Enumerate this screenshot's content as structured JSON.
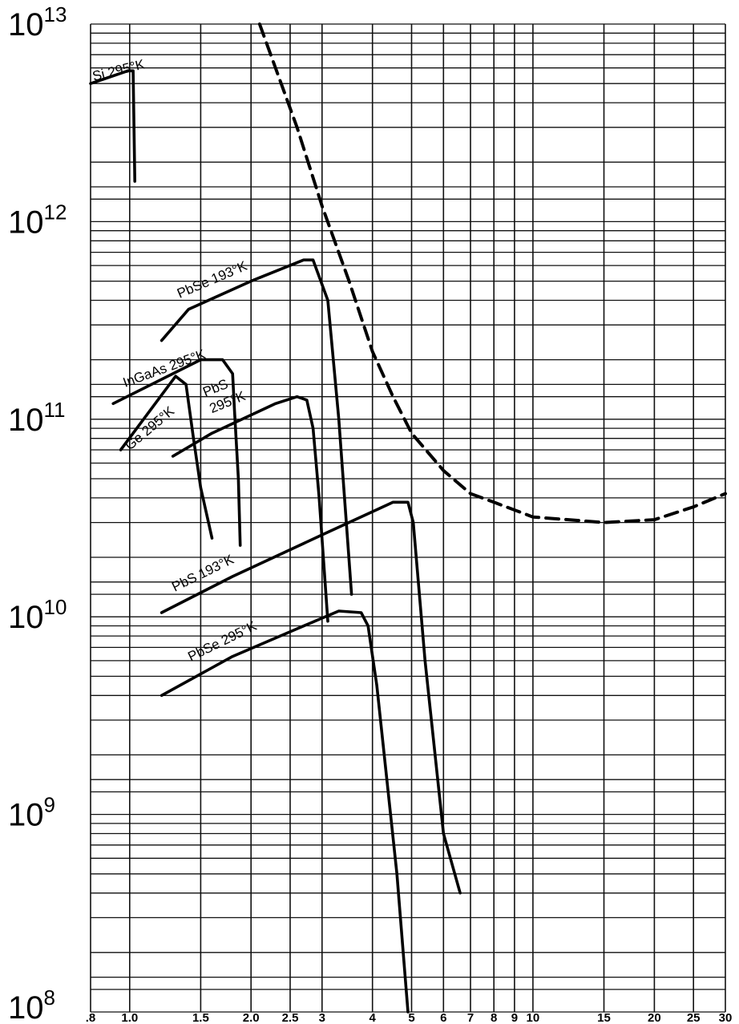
{
  "chart_data": {
    "type": "line",
    "title": "",
    "xlabel": "",
    "ylabel": "",
    "x_scale": "log",
    "y_scale": "log",
    "xlim": [
      0.8,
      30
    ],
    "ylim": [
      100000000.0,
      10000000000000.0
    ],
    "grid": true,
    "y_ticks": [
      {
        "base": "10",
        "exp": "8",
        "value": 100000000.0
      },
      {
        "base": "10",
        "exp": "9",
        "value": 1000000000.0
      },
      {
        "base": "10",
        "exp": "10",
        "value": 10000000000.0
      },
      {
        "base": "10",
        "exp": "11",
        "value": 100000000000.0
      },
      {
        "base": "10",
        "exp": "12",
        "value": 1000000000000.0
      },
      {
        "base": "10",
        "exp": "13",
        "value": 10000000000000.0
      }
    ],
    "x_ticks": [
      {
        "label": ".8",
        "value": 0.8
      },
      {
        "label": "1.0",
        "value": 1.0
      },
      {
        "label": "1.5",
        "value": 1.5
      },
      {
        "label": "2.0",
        "value": 2.0
      },
      {
        "label": "2.5",
        "value": 2.5
      },
      {
        "label": "3",
        "value": 3
      },
      {
        "label": "4",
        "value": 4
      },
      {
        "label": "5",
        "value": 5
      },
      {
        "label": "6",
        "value": 6
      },
      {
        "label": "7",
        "value": 7
      },
      {
        "label": "8",
        "value": 8
      },
      {
        "label": "9",
        "value": 9
      },
      {
        "label": "10",
        "value": 10
      },
      {
        "label": "15",
        "value": 15
      },
      {
        "label": "20",
        "value": 20
      },
      {
        "label": "25",
        "value": 25
      },
      {
        "label": "30",
        "value": 30
      }
    ],
    "grid_x": [
      0.8,
      1.0,
      1.5,
      2.0,
      2.5,
      3,
      4,
      5,
      6,
      7,
      8,
      9,
      10,
      15,
      20,
      25,
      30
    ],
    "grid_y": [
      100000000.0,
      130000000.0,
      150000000.0,
      200000000.0,
      300000000.0,
      400000000.0,
      500000000.0,
      600000000.0,
      700000000.0,
      800000000.0,
      900000000.0,
      1000000000.0,
      1300000000.0,
      1500000000.0,
      2000000000.0,
      3000000000.0,
      4000000000.0,
      5000000000.0,
      6000000000.0,
      7000000000.0,
      8000000000.0,
      9000000000.0,
      10000000000.0,
      13000000000.0,
      15000000000.0,
      20000000000.0,
      30000000000.0,
      40000000000.0,
      50000000000.0,
      60000000000.0,
      70000000000.0,
      80000000000.0,
      90000000000.0,
      100000000000.0,
      130000000000.0,
      150000000000.0,
      200000000000.0,
      300000000000.0,
      400000000000.0,
      500000000000.0,
      600000000000.0,
      700000000000.0,
      800000000000.0,
      900000000000.0,
      1000000000000.0,
      1300000000000.0,
      1500000000000.0,
      2000000000000.0,
      3000000000000.0,
      4000000000000.0,
      5000000000000.0,
      6000000000000.0,
      7000000000000.0,
      8000000000000.0,
      9000000000000.0,
      10000000000000.0
    ],
    "series": [
      {
        "name": "Si 295°K",
        "style": "solid",
        "points": [
          [
            0.8,
            5000000000000.0
          ],
          [
            0.99,
            5800000000000.0
          ],
          [
            1.02,
            5800000000000.0
          ],
          [
            1.03,
            1600000000000.0
          ]
        ]
      },
      {
        "name": "PbSe 193°K",
        "style": "solid",
        "points": [
          [
            1.2,
            250000000000.0
          ],
          [
            1.4,
            360000000000.0
          ],
          [
            2.0,
            500000000000.0
          ],
          [
            2.7,
            640000000000.0
          ],
          [
            2.85,
            640000000000.0
          ],
          [
            3.1,
            400000000000.0
          ],
          [
            3.3,
            100000000000.0
          ],
          [
            3.55,
            13000000000.0
          ]
        ]
      },
      {
        "name": "InGaAs 295°K",
        "style": "solid",
        "points": [
          [
            0.91,
            120000000000.0
          ],
          [
            1.5,
            200000000000.0
          ],
          [
            1.7,
            200000000000.0
          ],
          [
            1.8,
            170000000000.0
          ],
          [
            1.82,
            110000000000.0
          ],
          [
            1.86,
            50000000000.0
          ],
          [
            1.88,
            23000000000.0
          ]
        ]
      },
      {
        "name": "Ge 295°K",
        "style": "solid",
        "points": [
          [
            0.95,
            70000000000.0
          ],
          [
            1.3,
            165000000000.0
          ],
          [
            1.38,
            150000000000.0
          ],
          [
            1.44,
            80000000000.0
          ],
          [
            1.5,
            45000000000.0
          ],
          [
            1.6,
            25000000000.0
          ]
        ]
      },
      {
        "name": "PbS 295°K",
        "style": "solid",
        "points": [
          [
            1.28,
            65000000000.0
          ],
          [
            1.6,
            85000000000.0
          ],
          [
            2.3,
            120000000000.0
          ],
          [
            2.6,
            130000000000.0
          ],
          [
            2.75,
            125000000000.0
          ],
          [
            2.85,
            90000000000.0
          ],
          [
            2.95,
            40000000000.0
          ],
          [
            3.1,
            9500000000.0
          ]
        ]
      },
      {
        "name": "PbS 193°K",
        "style": "solid",
        "points": [
          [
            1.2,
            10500000000.0
          ],
          [
            1.8,
            16000000000.0
          ],
          [
            3.0,
            26000000000.0
          ],
          [
            4.5,
            38000000000.0
          ],
          [
            4.9,
            38000000000.0
          ],
          [
            5.05,
            30000000000.0
          ],
          [
            5.4,
            6000000000.0
          ],
          [
            6.0,
            800000000.0
          ],
          [
            6.6,
            400000000.0
          ]
        ]
      },
      {
        "name": "PbSe 295°K",
        "style": "solid",
        "points": [
          [
            1.2,
            4000000000.0
          ],
          [
            1.8,
            6300000000.0
          ],
          [
            2.6,
            8700000000.0
          ],
          [
            3.3,
            10700000000.0
          ],
          [
            3.75,
            10500000000.0
          ],
          [
            3.9,
            9000000000.0
          ],
          [
            4.1,
            4500000000.0
          ],
          [
            4.6,
            500000000.0
          ],
          [
            4.9,
            100000000.0
          ]
        ]
      },
      {
        "name": "",
        "style": "dashed",
        "points": [
          [
            2.1,
            10000000000000.0
          ],
          [
            2.6,
            3000000000000.0
          ],
          [
            3.0,
            1200000000000.0
          ],
          [
            3.5,
            500000000000.0
          ],
          [
            4.0,
            220000000000.0
          ],
          [
            4.5,
            130000000000.0
          ],
          [
            5.0,
            85000000000.0
          ],
          [
            6.0,
            55000000000.0
          ],
          [
            7.0,
            42000000000.0
          ],
          [
            8.0,
            38000000000.0
          ],
          [
            10,
            32000000000.0
          ],
          [
            15,
            30000000000.0
          ],
          [
            20,
            31000000000.0
          ],
          [
            25,
            36000000000.0
          ],
          [
            30,
            42000000000.0
          ]
        ]
      }
    ]
  }
}
